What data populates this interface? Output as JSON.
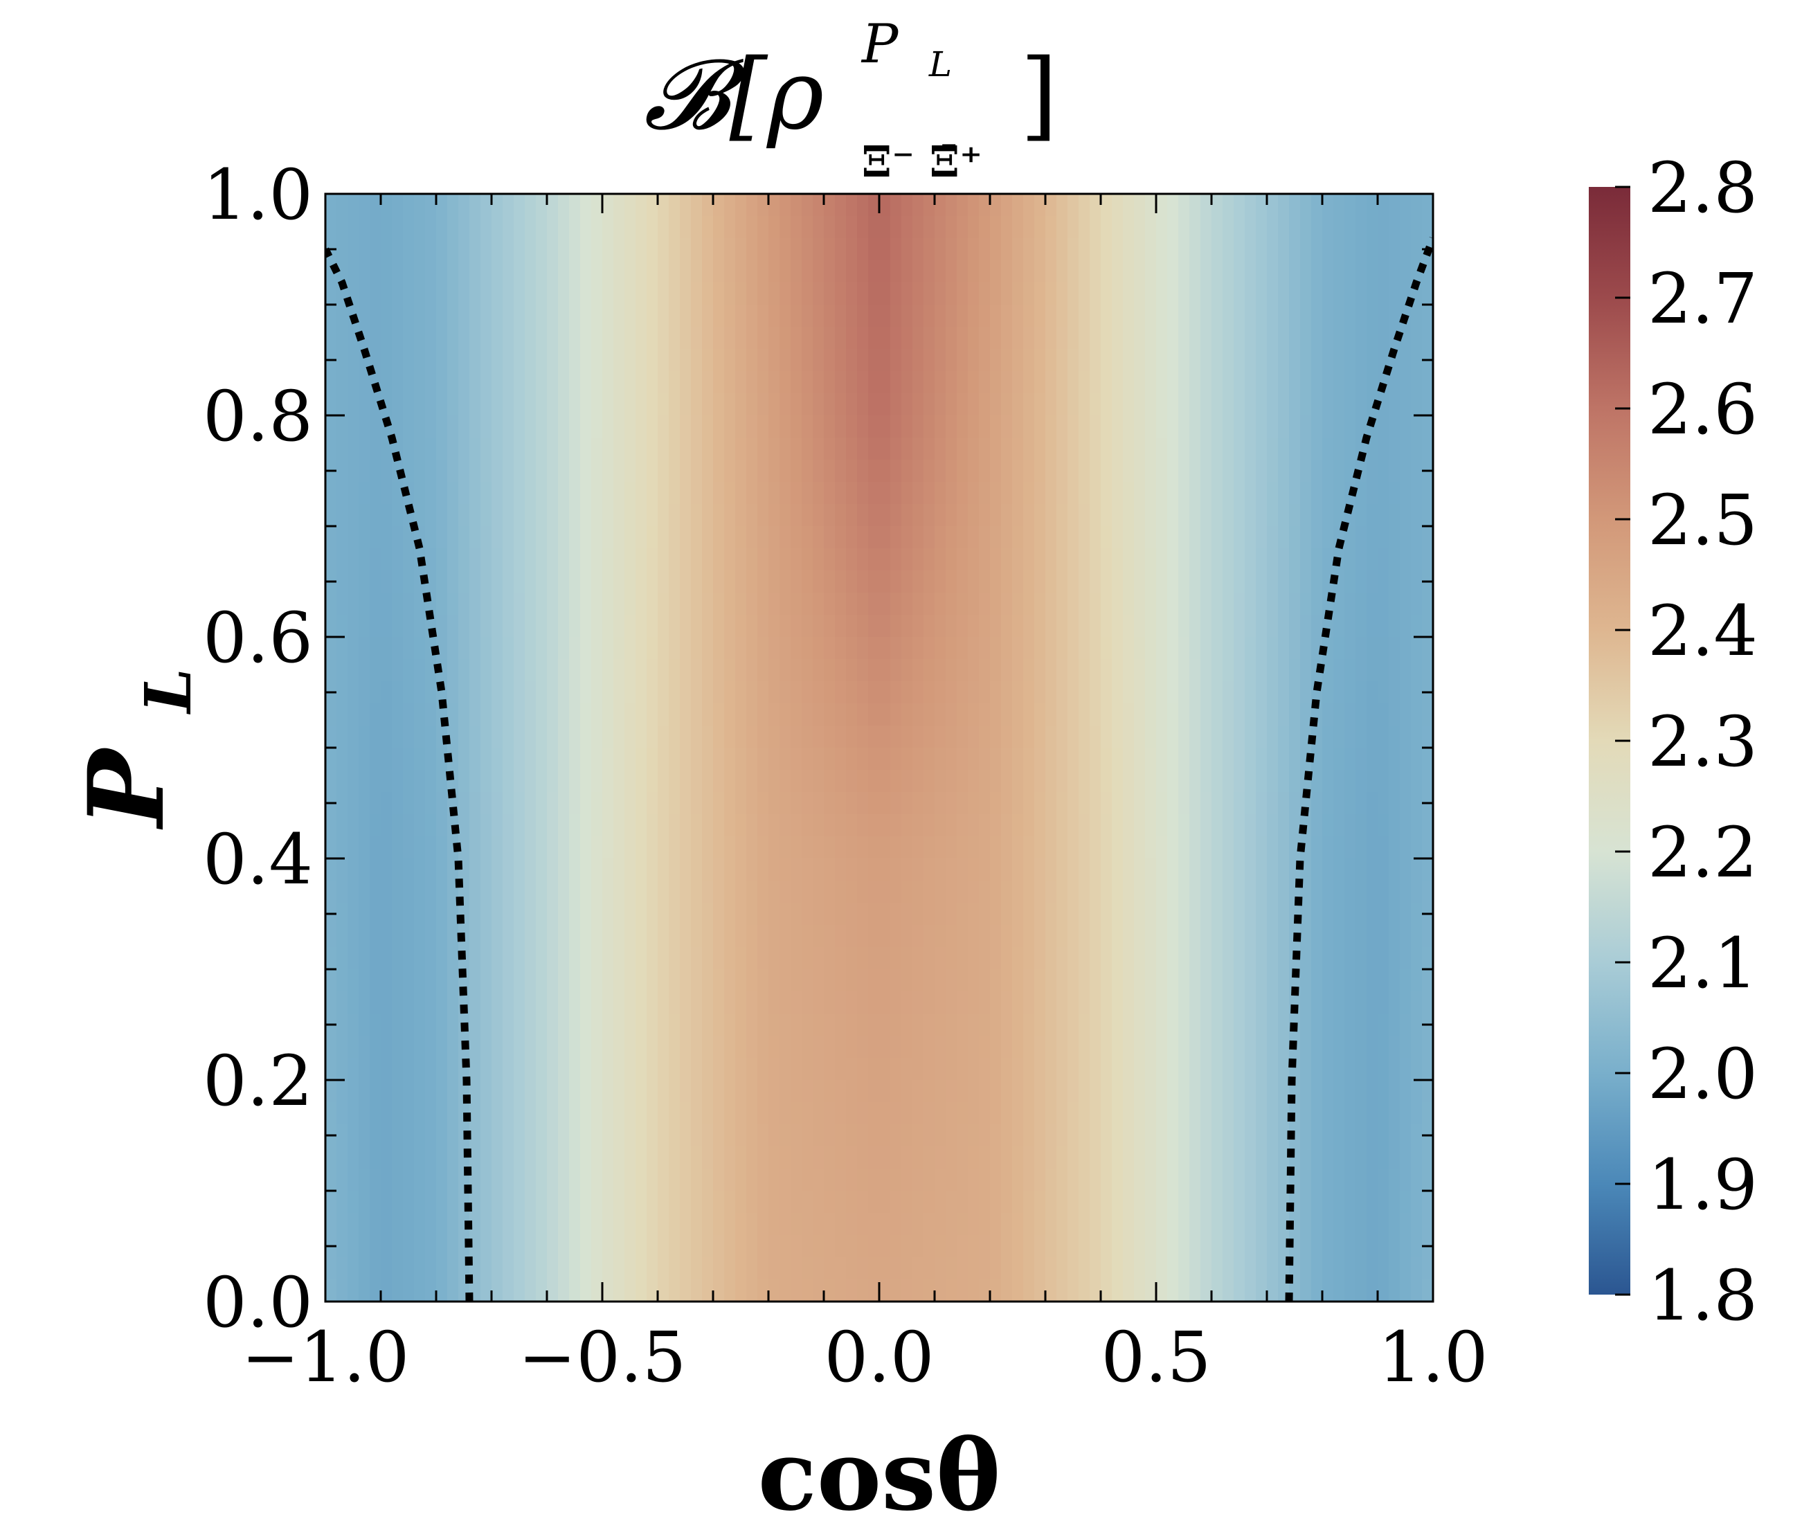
{
  "chart_data": {
    "type": "heatmap",
    "title": "𝓑[ρ",
    "title_sup": "P",
    "title_sup_sub": "L",
    "title_sub": "Ξ⁻ Ξ̄⁺",
    "title_end": "]",
    "xlabel": "cosθ",
    "ylabel": "P",
    "ylabel_sub": "L",
    "xlim": [
      -1.0,
      1.0
    ],
    "ylim": [
      0.0,
      1.0
    ],
    "xticks": [
      "−1.0",
      "−0.5",
      "0.0",
      "0.5",
      "1.0"
    ],
    "yticks": [
      "0.0",
      "0.2",
      "0.4",
      "0.6",
      "0.8",
      "1.0"
    ],
    "colorbar": {
      "min": 1.8,
      "max": 2.8,
      "ticks": [
        "1.8",
        "1.9",
        "2.0",
        "2.1",
        "2.2",
        "2.3",
        "2.4",
        "2.5",
        "2.6",
        "2.7",
        "2.8"
      ],
      "colormap": "RdYlBu_r (muted)",
      "colors": [
        "#2b5691",
        "#4b88b8",
        "#79afcb",
        "#a9ccd6",
        "#d7e3d3",
        "#e3dab8",
        "#deb690",
        "#d29879",
        "#be7466",
        "#9c4a4c",
        "#7a2b39"
      ]
    },
    "surface_samples": {
      "x": [
        -1.0,
        -0.9,
        -0.8,
        -0.6,
        -0.4,
        -0.2,
        0.0,
        0.2,
        0.4,
        0.6,
        0.8,
        0.9,
        1.0
      ],
      "y": [
        0.0,
        0.4,
        0.8,
        1.0
      ],
      "z": [
        [
          2.02,
          1.98,
          2.0,
          2.14,
          2.32,
          2.43,
          2.45,
          2.43,
          2.32,
          2.14,
          2.0,
          1.98,
          2.02
        ],
        [
          2.01,
          1.98,
          2.0,
          2.14,
          2.32,
          2.44,
          2.48,
          2.44,
          2.32,
          2.14,
          2.0,
          1.98,
          2.01
        ],
        [
          2.0,
          1.99,
          2.01,
          2.14,
          2.31,
          2.47,
          2.61,
          2.47,
          2.31,
          2.14,
          2.01,
          1.99,
          2.0
        ],
        [
          2.0,
          1.99,
          2.01,
          2.14,
          2.31,
          2.49,
          2.63,
          2.49,
          2.31,
          2.14,
          2.01,
          1.99,
          2.0
        ]
      ]
    },
    "dotted_boundary_left": {
      "x": [
        -0.74,
        -0.745,
        -0.76,
        -0.79,
        -0.83,
        -0.88,
        -0.93,
        -0.97,
        -1.0
      ],
      "y": [
        0.0,
        0.2,
        0.4,
        0.55,
        0.68,
        0.78,
        0.86,
        0.92,
        0.95
      ]
    },
    "dotted_boundary_right": {
      "x": [
        0.74,
        0.745,
        0.76,
        0.79,
        0.83,
        0.88,
        0.93,
        0.97,
        1.0
      ],
      "y": [
        0.0,
        0.2,
        0.4,
        0.55,
        0.68,
        0.78,
        0.86,
        0.92,
        0.96
      ]
    }
  }
}
